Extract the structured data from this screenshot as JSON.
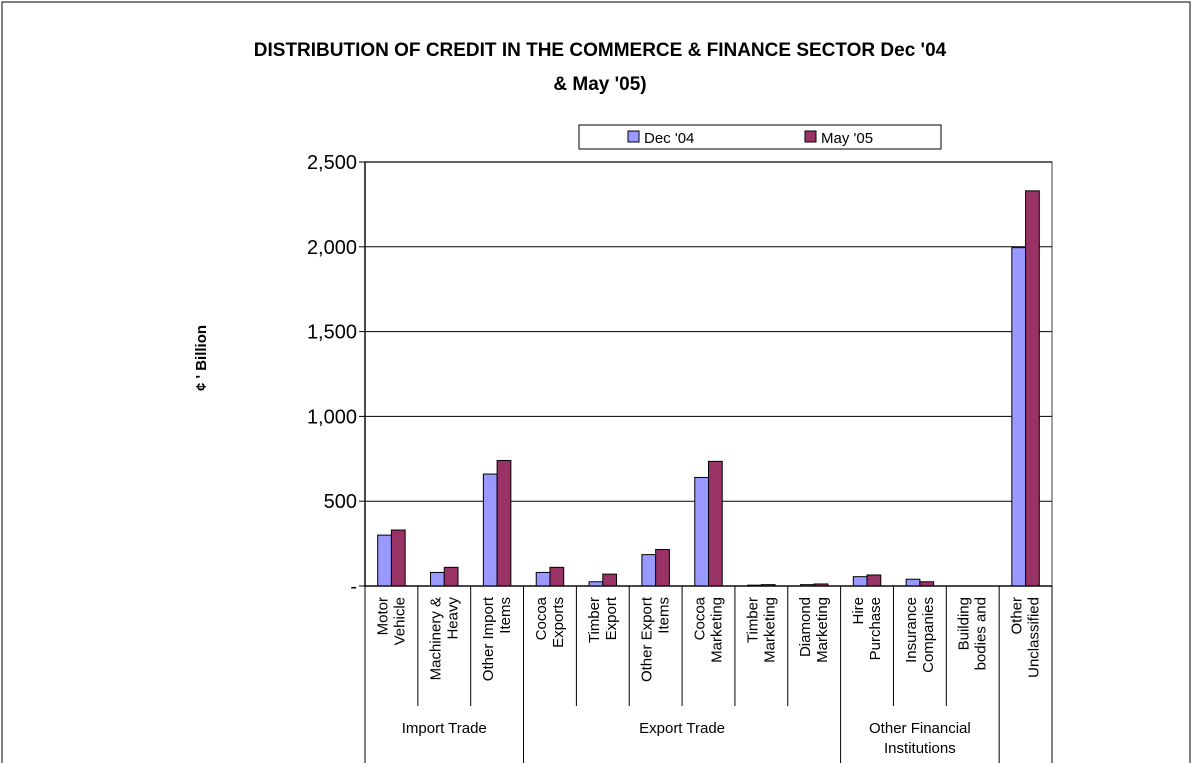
{
  "chart_data": {
    "type": "bar",
    "title_line1": "DISTRIBUTION OF CREDIT IN THE COMMERCE & FINANCE SECTOR Dec '04",
    "title_line2": "& May '05)",
    "ylabel": "¢ ' Billion",
    "xlabel": "",
    "ylim": [
      0,
      2500
    ],
    "yticks": [
      0,
      500,
      1000,
      1500,
      2000,
      2500
    ],
    "ytick_labels": [
      "-",
      "500",
      "1,000",
      "1,500",
      "2,000",
      "2,500"
    ],
    "grid": true,
    "legend_position": "top",
    "categories": [
      [
        "Motor",
        "Vehicle"
      ],
      [
        "Machinery &",
        "Heavy"
      ],
      [
        "Other Import",
        "Items"
      ],
      [
        "Cocoa",
        "Exports"
      ],
      [
        "Timber",
        "Export"
      ],
      [
        "Other Export",
        "Items"
      ],
      [
        "Cocoa",
        "Marketing"
      ],
      [
        "Timber",
        "Marketing"
      ],
      [
        "Diamond",
        "Marketing"
      ],
      [
        "Hire",
        "Purchase"
      ],
      [
        "Insurance",
        "Companies"
      ],
      [
        "Building",
        "bodies and"
      ],
      [
        "Other",
        "Unclassified"
      ]
    ],
    "groups": [
      {
        "label": [
          "Import Trade"
        ],
        "start": 0,
        "end": 3
      },
      {
        "label": [
          "Export Trade"
        ],
        "start": 3,
        "end": 9
      },
      {
        "label": [
          "Other Financial",
          "Institutions"
        ],
        "start": 9,
        "end": 12
      },
      {
        "label": [
          ""
        ],
        "start": 12,
        "end": 13
      }
    ],
    "series": [
      {
        "name": "Dec '04",
        "color": "#9999ff",
        "values": [
          300,
          80,
          660,
          80,
          25,
          185,
          640,
          5,
          8,
          55,
          40,
          0,
          1995
        ]
      },
      {
        "name": "May '05",
        "color": "#993366",
        "values": [
          330,
          110,
          740,
          110,
          70,
          215,
          735,
          8,
          12,
          65,
          25,
          0,
          2330
        ]
      }
    ]
  }
}
